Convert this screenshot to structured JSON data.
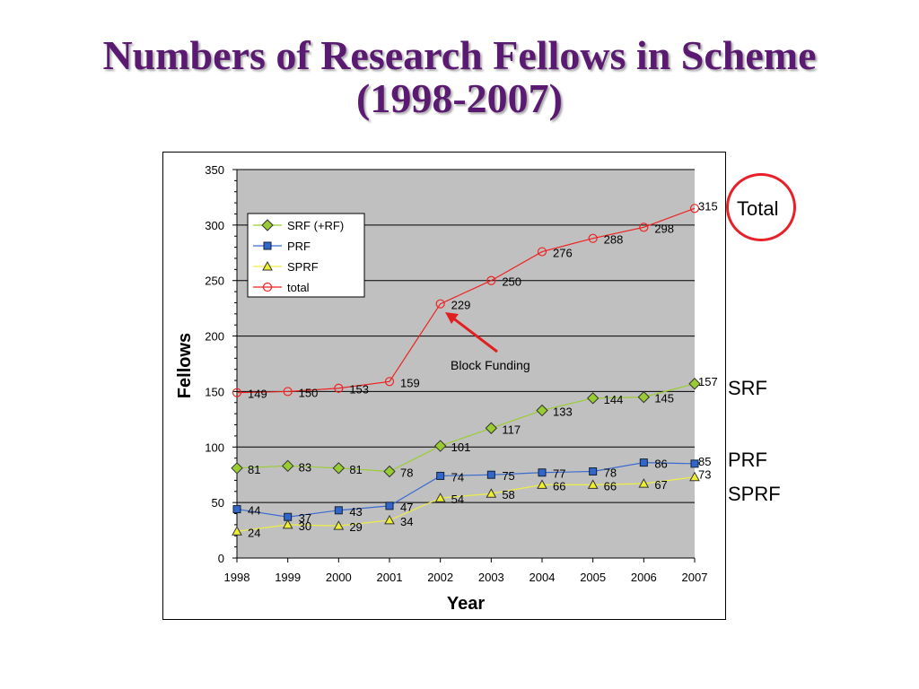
{
  "title": {
    "line1": "Numbers of Research Fellows in Scheme",
    "line2": "(1998-2007)"
  },
  "side_labels": {
    "total": "Total",
    "srf": "SRF",
    "prf": "PRF",
    "sprf": "SPRF"
  },
  "annotation": "Block Funding",
  "colors": {
    "plot_bg": "#c0c0c0",
    "srf": "#99cc33",
    "prf": "#3366cc",
    "sprf": "#eeee33",
    "total": "#ee2222",
    "title": "#5b1a72",
    "arrow": "#e02020"
  },
  "chart_data": {
    "type": "line",
    "title": "",
    "xlabel": "Year",
    "ylabel": "Fellows",
    "ylim": [
      0,
      350
    ],
    "yticks": [
      0,
      50,
      100,
      150,
      200,
      250,
      300,
      350
    ],
    "grid": true,
    "legend_position": "top-left",
    "x": [
      1998,
      1999,
      2000,
      2001,
      2002,
      2003,
      2004,
      2005,
      2006,
      2007
    ],
    "series": [
      {
        "name": "SRF (+RF)",
        "marker": "diamond",
        "values": [
          81,
          83,
          81,
          78,
          101,
          117,
          133,
          144,
          145,
          157
        ]
      },
      {
        "name": "PRF",
        "marker": "square",
        "values": [
          44,
          37,
          43,
          47,
          74,
          75,
          77,
          78,
          86,
          85
        ]
      },
      {
        "name": "SPRF",
        "marker": "triangle",
        "values": [
          24,
          30,
          29,
          34,
          54,
          58,
          66,
          66,
          67,
          73
        ]
      },
      {
        "name": "total",
        "marker": "circle",
        "values": [
          149,
          150,
          153,
          159,
          229,
          250,
          276,
          288,
          298,
          315
        ]
      }
    ]
  }
}
